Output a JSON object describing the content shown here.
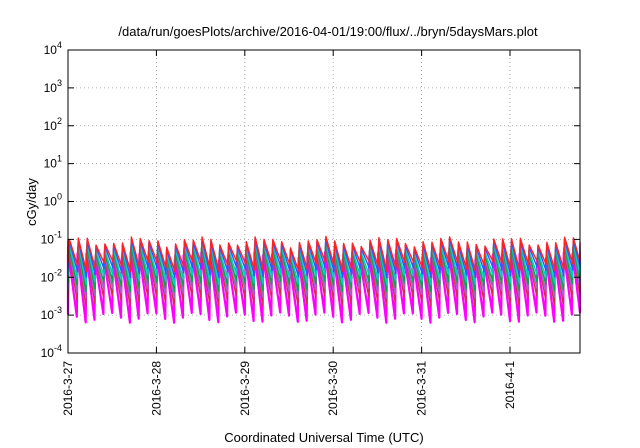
{
  "chart_data": {
    "type": "line",
    "title": "/data/run/goesPlots/archive/2016-04-01/19:00/flux/../bryn/5daysMars.plot",
    "xlabel": "Coordinated Universal Time (UTC)",
    "ylabel": "cGy/day",
    "yscale": "log",
    "ylim": [
      0.0001,
      10000
    ],
    "xlim": [
      "2016-03-27T00:00",
      "2016-04-01T19:00"
    ],
    "grid": true,
    "x_ticks": [
      "2016-3-27",
      "2016-3-28",
      "2016-3-29",
      "2016-3-30",
      "2016-3-31",
      "2016-4-1"
    ],
    "y_ticks": [
      {
        "base": "10",
        "exp": "-4",
        "value": 0.0001
      },
      {
        "base": "10",
        "exp": "-3",
        "value": 0.001
      },
      {
        "base": "10",
        "exp": "-2",
        "value": 0.01
      },
      {
        "base": "10",
        "exp": "-1",
        "value": 0.1
      },
      {
        "base": "10",
        "exp": "0",
        "value": 1
      },
      {
        "base": "10",
        "exp": "1",
        "value": 10
      },
      {
        "base": "10",
        "exp": "2",
        "value": 100
      },
      {
        "base": "10",
        "exp": "3",
        "value": 1000
      },
      {
        "base": "10",
        "exp": "4",
        "value": 10000
      }
    ],
    "sawtooth_period_hours": 2.4,
    "series": [
      {
        "color": "#ff00ff",
        "peak": 0.035,
        "trough": 0.0009
      },
      {
        "color": "#cc3344",
        "peak": 0.045,
        "trough": 0.0025
      },
      {
        "color": "#9966cc",
        "peak": 0.05,
        "trough": 0.004
      },
      {
        "color": "#00aa44",
        "peak": 0.055,
        "trough": 0.006
      },
      {
        "color": "#00cccc",
        "peak": 0.065,
        "trough": 0.009
      },
      {
        "color": "#3355ff",
        "peak": 0.08,
        "trough": 0.014
      },
      {
        "color": "#ff2222",
        "peak": 0.09,
        "trough": 0.02
      }
    ]
  }
}
